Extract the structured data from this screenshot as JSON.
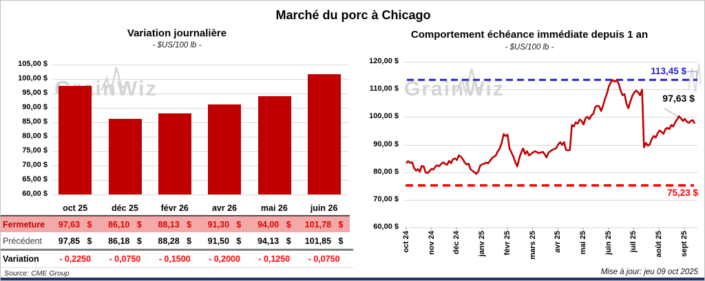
{
  "title": "Marché du porc à Chicago",
  "source": "Source: CME Group",
  "updated": "Mise à jour: jeu 09 oct 2025",
  "watermark": "GrainWiz",
  "colors": {
    "bar_red": "#C00000",
    "line_red": "#C00000",
    "pink_row": "#F4A9A9",
    "fermeture_text": "#C00000",
    "fermeture_values": "#E00000",
    "variation_values": "#FF0000",
    "reference_blue": "#2323CC",
    "reference_red": "#FF0000",
    "bottom_bar_navy": "#1F3864",
    "gridline": "#D9D9D9"
  },
  "chart_data": [
    {
      "type": "bar",
      "title": "Variation journalière",
      "subtitle": "- $US/100 lb -",
      "categories": [
        "oct 25",
        "déc 25",
        "févr 26",
        "avr 26",
        "mai 26",
        "juin 26"
      ],
      "values": [
        97.63,
        86.1,
        88.13,
        91.3,
        94.0,
        101.78
      ],
      "ylim": [
        60,
        105
      ],
      "y_ticks": [
        "105,00 $",
        "100,00 $",
        "95,00 $",
        "90,00 $",
        "85,00 $",
        "80,00 $",
        "75,00 $",
        "70,00 $",
        "65,00 $",
        "60,00 $"
      ],
      "grid": true,
      "legend": "none"
    },
    {
      "type": "line",
      "title": "Comportement échéance immédiate depuis 1 an",
      "subtitle": "- $US/100 lb -",
      "ylim": [
        60,
        120
      ],
      "y_ticks": [
        "120,00 $",
        "110,00 $",
        "100,00 $",
        "90,00 $",
        "80,00 $",
        "70,00 $",
        "60,00 $"
      ],
      "x_ticks": [
        "oct 24",
        "nov 24",
        "déc 24",
        "janv 25",
        "févr 25",
        "mars 25",
        "avr 25",
        "mai 25",
        "juin 25",
        "juil 25",
        "août 25",
        "sept 25"
      ],
      "grid": true,
      "legend": "none",
      "last_value_label": "97,63 $",
      "reference_lines": [
        {
          "value": 113.45,
          "label": "113,45 $",
          "color": "#2323CC",
          "style": "dashed"
        },
        {
          "value": 75.23,
          "label": "75,23 $",
          "color": "#FF0000",
          "style": "dashed"
        }
      ],
      "values": [
        83.3,
        84.0,
        83.4,
        83.6,
        81.6,
        80.6,
        81.1,
        80.2,
        82.3,
        82.0,
        79.9,
        79.7,
        80.4,
        81.2,
        81.0,
        82.1,
        82.5,
        82.2,
        83.0,
        83.6,
        83.0,
        82.7,
        84.1,
        83.3,
        84.7,
        85.0,
        84.4,
        86.1,
        85.6,
        84.8,
        83.5,
        82.8,
        83.1,
        81.1,
        80.5,
        80.0,
        79.4,
        80.3,
        82.5,
        82.8,
        83.1,
        83.5,
        83.2,
        84.1,
        85.1,
        85.6,
        86.1,
        87.6,
        88.6,
        90.6,
        93.8,
        93.1,
        93.6,
        88.6,
        87.1,
        85.6,
        83.6,
        82.1,
        85.1,
        87.1,
        88.6,
        86.6,
        87.6,
        86.1,
        86.6,
        87.1,
        87.6,
        87.3,
        86.9,
        87.1,
        87.4,
        86.6,
        85.4,
        87.1,
        87.6,
        88.1,
        88.4,
        88.7,
        90.1,
        90.9,
        89.9,
        90.9,
        88.1,
        87.9,
        88.1,
        97.1,
        96.6,
        98.1,
        97.6,
        99.1,
        98.6,
        97.3,
        99.6,
        100.1,
        99.2,
        100.6,
        101.2,
        103.6,
        104.1,
        103.9,
        102.2,
        104.1,
        106.6,
        108.6,
        111.1,
        112.6,
        113.4,
        112.8,
        113.4,
        112.1,
        109.6,
        107.9,
        108.3,
        104.9,
        103.2,
        105.6,
        107.6,
        108.9,
        109.6,
        108.9,
        107.9,
        109.9,
        89.0,
        90.6,
        89.6,
        90.1,
        92.1,
        93.1,
        92.6,
        94.1,
        95.1,
        94.6,
        93.9,
        95.6,
        96.1,
        95.6,
        97.1,
        96.6,
        98.1,
        99.1,
        100.3,
        99.4,
        98.6,
        99.3,
        98.3,
        97.9,
        98.6,
        98.9,
        97.63
      ]
    }
  ],
  "left_table": {
    "rows": [
      {
        "label": "Fermeture",
        "style": "fermeture",
        "values": [
          "97,63 $",
          "86,10 $",
          "88,13 $",
          "91,30 $",
          "94,00 $",
          "101,78 $"
        ]
      },
      {
        "label": "Précédent",
        "style": "precedent",
        "values": [
          "97,85 $",
          "86,18 $",
          "88,28 $",
          "91,50 $",
          "94,13 $",
          "101,85 $"
        ]
      },
      {
        "label": "Variation",
        "style": "variation",
        "values": [
          "- 0,2250",
          "- 0,0750",
          "- 0,1500",
          "- 0,2000",
          "- 0,1250",
          "- 0,0750"
        ]
      }
    ]
  }
}
